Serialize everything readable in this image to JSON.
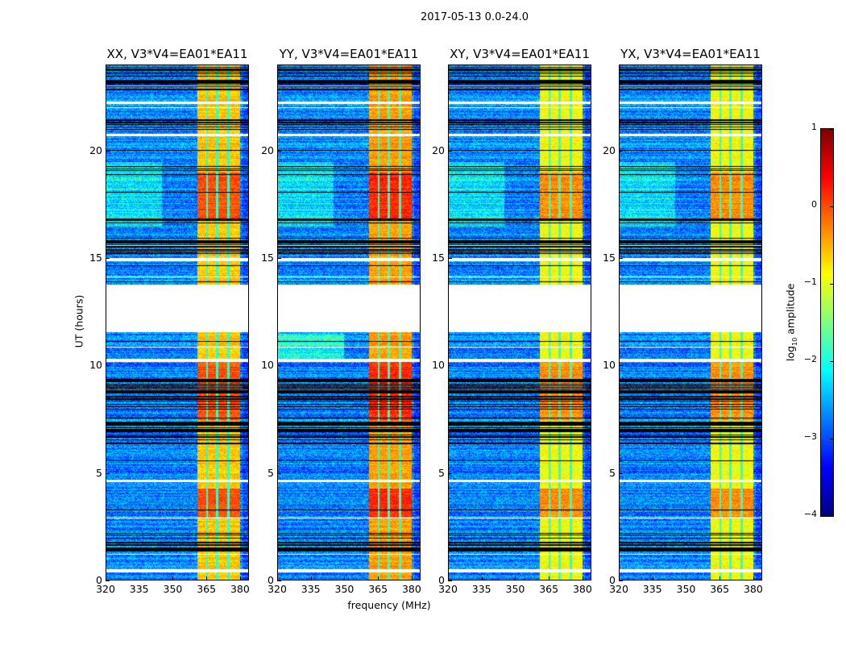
{
  "figure_title": "2017-05-13 0.0-24.0",
  "chart_data": {
    "type": "heatmap",
    "suptitle": "2017-05-13 0.0-24.0",
    "xlabel": "frequency (MHz)",
    "ylabel": "UT (hours)",
    "xlim": [
      320,
      384
    ],
    "ylim": [
      0,
      24
    ],
    "xticks": [
      320,
      335,
      350,
      365,
      380
    ],
    "yticks": [
      0,
      5,
      10,
      15,
      20
    ],
    "panels": [
      {
        "title": "XX, V3*V4=EA01*EA11",
        "band_level": -0.6
      },
      {
        "title": "YY, V3*V4=EA01*EA11",
        "band_level": -0.4
      },
      {
        "title": "XY, V3*V4=EA01*EA11",
        "band_level": -0.9
      },
      {
        "title": "YX, V3*V4=EA01*EA11",
        "band_level": -0.9
      }
    ],
    "rfi_band_mhz": [
      361,
      380.5
    ],
    "rfi_channel_gaps_mhz": [
      365.5,
      370,
      375
    ],
    "background_level": -2.7,
    "flagged_hours_white": [
      [
        0.4,
        0.55
      ],
      [
        4.6,
        4.72
      ],
      [
        10.2,
        10.35
      ],
      [
        11.6,
        13.8
      ],
      [
        14.9,
        15.02
      ],
      [
        20.7,
        20.8
      ],
      [
        22.2,
        22.3
      ]
    ],
    "blanked_rows_black_hours": [
      [
        1.3,
        2.3
      ],
      [
        6.2,
        7.6
      ],
      [
        8.0,
        9.5
      ],
      [
        15.2,
        16.0
      ],
      [
        16.5,
        17.0
      ],
      [
        18.9,
        19.4
      ],
      [
        20.8,
        21.5
      ],
      [
        22.6,
        24.0
      ]
    ],
    "strong_hours": [
      [
        3.0,
        4.3
      ],
      [
        7.5,
        10.3
      ],
      [
        16.8,
        19.0
      ]
    ],
    "colorbar": {
      "label_main": "log",
      "label_sub": "10",
      "label_rest": " amplitude",
      "colormap": "jet",
      "range": [
        -4,
        1
      ],
      "ticks": [
        1,
        0,
        -1,
        -2,
        -3,
        -4
      ],
      "tick_labels": [
        "1",
        "0",
        "−1",
        "−2",
        "−3",
        "−4"
      ]
    }
  }
}
